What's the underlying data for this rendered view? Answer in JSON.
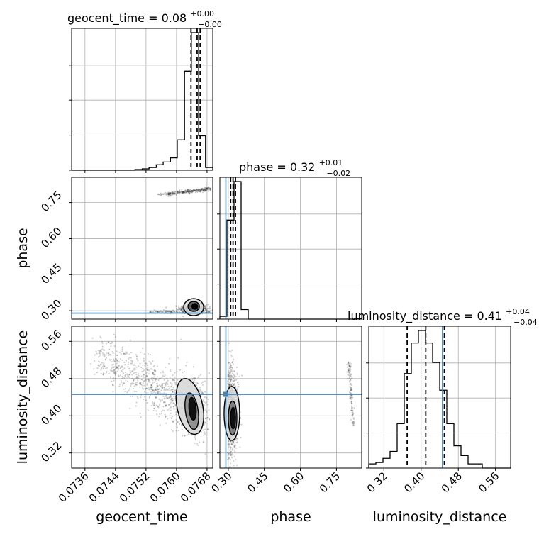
{
  "chart_data": {
    "type": "corner",
    "parameters": [
      {
        "key": "geocent_time",
        "label": "geocent_time",
        "title": "geocent_time = 0.08",
        "title_sup": "+0.00",
        "title_sub": "−0.00",
        "range": [
          0.07325,
          0.07695
        ],
        "ticks": [
          0.0736,
          0.0744,
          0.0752,
          0.076,
          0.0768
        ],
        "tick_labels": [
          "0.0736",
          "0.0744",
          "0.0752",
          "0.0760",
          "0.0768"
        ],
        "quantiles": [
          0.07638,
          0.07654,
          0.07662
        ],
        "truth": null,
        "hist": {
          "edges": [
            0.07325,
            0.07343,
            0.07362,
            0.0738,
            0.07399,
            0.07417,
            0.07436,
            0.07454,
            0.07473,
            0.07491,
            0.0751,
            0.07528,
            0.07547,
            0.07565,
            0.07584,
            0.07602,
            0.07621,
            0.07639,
            0.07658,
            0.07676,
            0.07695
          ],
          "counts": [
            0,
            0,
            0,
            0,
            0,
            0,
            0,
            0,
            0,
            0.5,
            1,
            2,
            4,
            6,
            9,
            22,
            72,
            100,
            25,
            2
          ]
        }
      },
      {
        "key": "phase",
        "label": "phase",
        "title": "phase = 0.32",
        "title_sup": "+0.01",
        "title_sub": "−0.02",
        "range": [
          0.265,
          0.855
        ],
        "ticks": [
          0.3,
          0.45,
          0.6,
          0.75
        ],
        "tick_labels": [
          "0.30",
          "0.45",
          "0.60",
          "0.75"
        ],
        "quantiles": [
          0.31,
          0.32,
          0.33
        ],
        "truth": 0.29,
        "hist": {
          "edges": [
            0.265,
            0.2945,
            0.324,
            0.3535,
            0.383,
            0.4125,
            0.442,
            0.4715,
            0.501,
            0.5305,
            0.56,
            0.5895,
            0.619,
            0.6485,
            0.678,
            0.7075,
            0.737,
            0.7665,
            0.796,
            0.8255,
            0.855
          ],
          "counts": [
            2,
            72,
            100,
            7,
            0,
            0,
            0,
            0,
            0,
            0,
            0,
            0,
            0,
            0,
            0,
            0,
            0,
            0,
            0,
            0.3
          ]
        }
      },
      {
        "key": "luminosity_distance",
        "label": "luminosity_distance",
        "title": "luminosity_distance = 0.41",
        "title_sup": "+0.04",
        "title_sub": "−0.04",
        "range": [
          0.2875,
          0.5925
        ],
        "ticks": [
          0.32,
          0.4,
          0.48,
          0.56
        ],
        "tick_labels": [
          "0.32",
          "0.40",
          "0.48",
          "0.56"
        ],
        "quantiles": [
          0.37,
          0.41,
          0.45
        ],
        "truth": 0.446,
        "hist": {
          "edges": [
            0.2875,
            0.30275,
            0.318,
            0.33325,
            0.3485,
            0.36375,
            0.379,
            0.39425,
            0.4095,
            0.42475,
            0.44,
            0.45525,
            0.4705,
            0.48575,
            0.501,
            0.51625,
            0.5315,
            0.54675,
            0.562,
            0.57725,
            0.5925
          ],
          "counts": [
            3,
            4,
            7,
            12,
            32,
            68,
            90,
            99,
            90,
            76,
            56,
            32,
            16,
            9,
            3,
            3,
            0,
            0,
            0,
            0
          ]
        }
      }
    ],
    "truths": {
      "phase": 0.29,
      "luminosity_distance": 0.446
    },
    "grid": true,
    "dashed_lines": "16th, 50th, 84th percentiles",
    "colors": {
      "samples": "#000000",
      "truth": "#4682b4",
      "grid": "#b0b0b0"
    }
  }
}
